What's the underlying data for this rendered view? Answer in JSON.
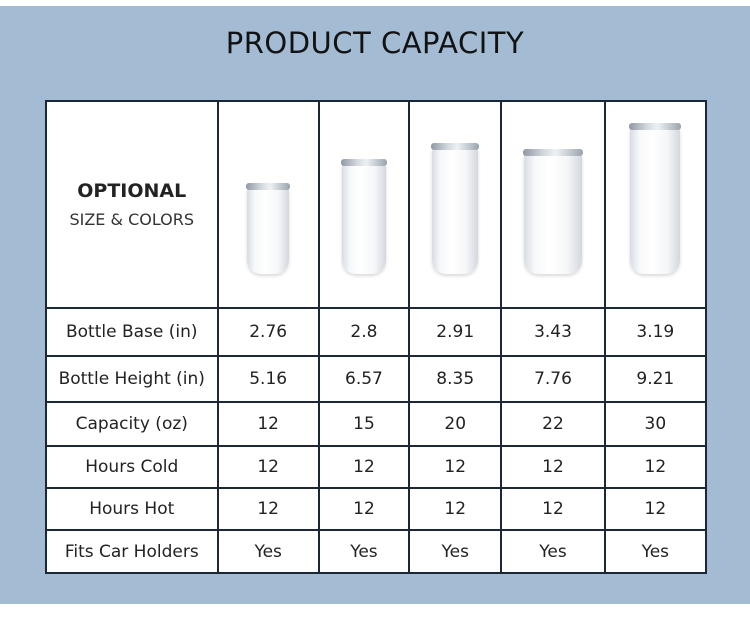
{
  "title": "PRODUCT CAPACITY",
  "header": {
    "line1": "OPTIONAL",
    "line2": "SIZE & COLORS",
    "product_icon": "tumbler-icon"
  },
  "rows": [
    {
      "label": "Bottle Base (in)",
      "values": [
        "2.76",
        "2.8",
        "2.91",
        "3.43",
        "3.19"
      ]
    },
    {
      "label": "Bottle Height (in)",
      "values": [
        "5.16",
        "6.57",
        "8.35",
        "7.76",
        "9.21"
      ]
    },
    {
      "label": "Capacity (oz)",
      "values": [
        "12",
        "15",
        "20",
        "22",
        "30"
      ]
    },
    {
      "label": "Hours Cold",
      "values": [
        "12",
        "12",
        "12",
        "12",
        "12"
      ]
    },
    {
      "label": "Hours Hot",
      "values": [
        "12",
        "12",
        "12",
        "12",
        "12"
      ]
    },
    {
      "label": "Fits Car Holders",
      "values": [
        "Yes",
        "Yes",
        "Yes",
        "Yes",
        "Yes"
      ]
    }
  ],
  "colors": {
    "background": "#a4bcd3",
    "border": "#1b2636"
  }
}
